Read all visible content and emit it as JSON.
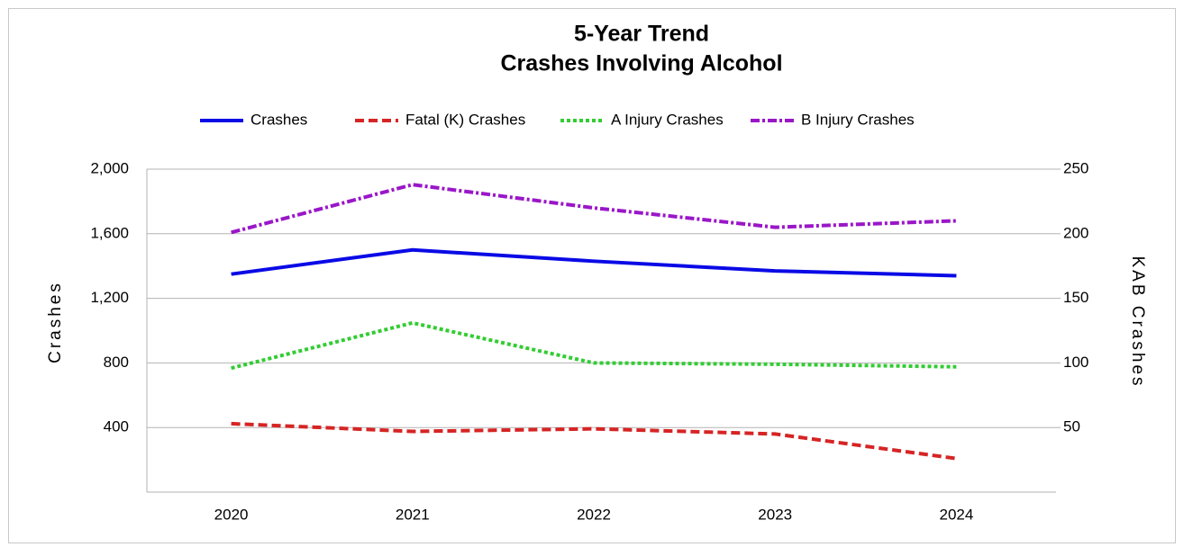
{
  "chart_data": {
    "type": "line",
    "title": "5-Year Trend",
    "subtitle": "Crashes Involving Alcohol",
    "categories": [
      "2020",
      "2021",
      "2022",
      "2023",
      "2024"
    ],
    "y_label": "Crashes",
    "y2_label": "KAB Crashes",
    "ylim": [
      0,
      2000
    ],
    "yticks": [
      400,
      800,
      {
        "value": 1200,
        "label": "1,200"
      },
      {
        "value": 1600,
        "label": "1,600"
      },
      {
        "value": 2000,
        "label": "2,000"
      }
    ],
    "y2lim": [
      0,
      250
    ],
    "y2ticks": [
      50,
      100,
      150,
      200,
      250
    ],
    "grid": true,
    "legend": "top",
    "series": [
      {
        "name": "Crashes",
        "color": "#0a0ae6",
        "style": "solid",
        "values": [
          1350,
          1500,
          1430,
          1370,
          1340
        ]
      },
      {
        "name": "Fatal (K) Crashes",
        "color": "#d62424",
        "style": "dashed",
        "axis": "y2",
        "values": [
          53,
          47,
          49,
          45,
          26
        ]
      },
      {
        "name": "A Injury Crashes",
        "color": "#33cc33",
        "style": "dotted",
        "axis": "y2",
        "values": [
          96,
          131,
          100,
          99,
          97
        ]
      },
      {
        "name": "B Injury Crashes",
        "color": "#9a16c8",
        "style": "dashdot",
        "axis": "y2",
        "values": [
          201,
          238,
          220,
          205,
          210
        ]
      }
    ]
  }
}
